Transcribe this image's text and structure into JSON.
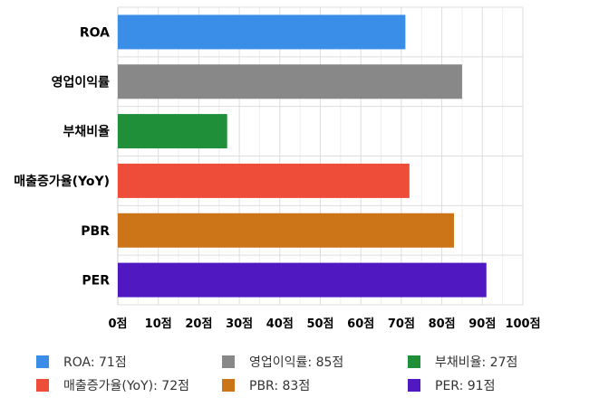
{
  "chart_data": {
    "type": "bar",
    "orientation": "horizontal",
    "categories": [
      "ROA",
      "영업이익률",
      "부채비율",
      "매출증가율(YoY)",
      "PBR",
      "PER"
    ],
    "values": [
      71,
      85,
      27,
      72,
      83,
      91
    ],
    "colors": [
      "#3b8ee8",
      "#888888",
      "#1f8f3a",
      "#ee4d3a",
      "#cc7418",
      "#5018c0"
    ],
    "xlim": [
      0,
      100
    ],
    "x_ticks": [
      0,
      10,
      20,
      30,
      40,
      50,
      60,
      70,
      80,
      90,
      100
    ],
    "tick_suffix": "점",
    "grid": true,
    "legend_position": "bottom",
    "legend": [
      {
        "label": "ROA: 71점",
        "color": "#3b8ee8"
      },
      {
        "label": "영업이익률: 85점",
        "color": "#888888"
      },
      {
        "label": "부채비율: 27점",
        "color": "#1f8f3a"
      },
      {
        "label": "매출증가율(YoY): 72점",
        "color": "#ee4d3a"
      },
      {
        "label": "PBR: 83점",
        "color": "#cc7418"
      },
      {
        "label": "PER: 91점",
        "color": "#5018c0"
      }
    ]
  }
}
